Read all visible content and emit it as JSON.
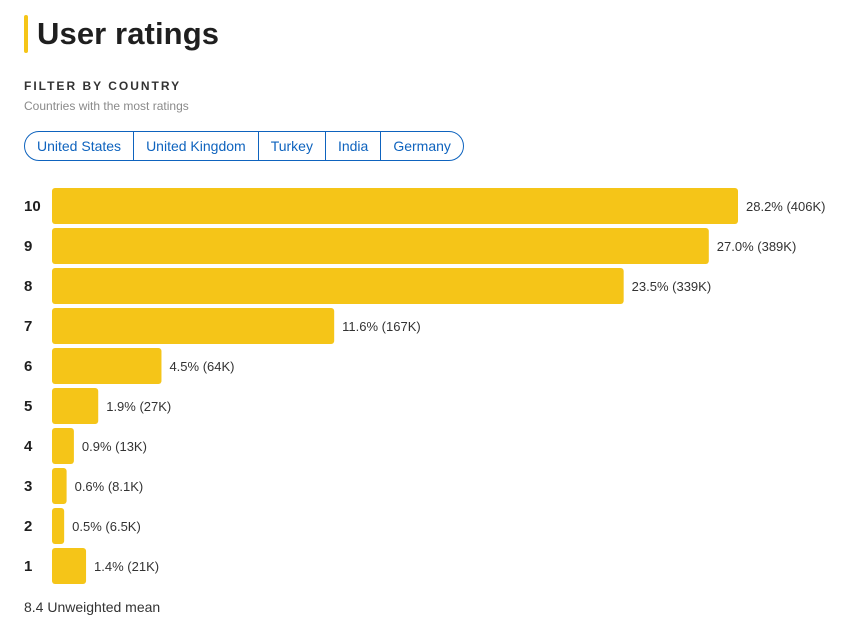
{
  "header": {
    "title": "User ratings"
  },
  "filter": {
    "heading": "FILTER BY COUNTRY",
    "subheading": "Countries with the most ratings",
    "countries": [
      "United States",
      "United Kingdom",
      "Turkey",
      "India",
      "Germany"
    ]
  },
  "chart_data": {
    "type": "bar",
    "orientation": "horizontal",
    "categories": [
      "10",
      "9",
      "8",
      "7",
      "6",
      "5",
      "4",
      "3",
      "2",
      "1"
    ],
    "values": [
      28.2,
      27.0,
      23.5,
      11.6,
      4.5,
      1.9,
      0.9,
      0.6,
      0.5,
      1.4
    ],
    "data_labels": [
      "28.2% (406K)",
      "27.0% (389K)",
      "23.5% (339K)",
      "11.6% (167K)",
      "4.5% (64K)",
      "1.9% (27K)",
      "0.9% (13K)",
      "0.6% (8.1K)",
      "0.5% (6.5K)",
      "1.4% (21K)"
    ],
    "bar_color": "#f5c518",
    "xlim": [
      0,
      28.2
    ]
  },
  "footer": {
    "mean_text": "8.4 Unweighted mean"
  }
}
